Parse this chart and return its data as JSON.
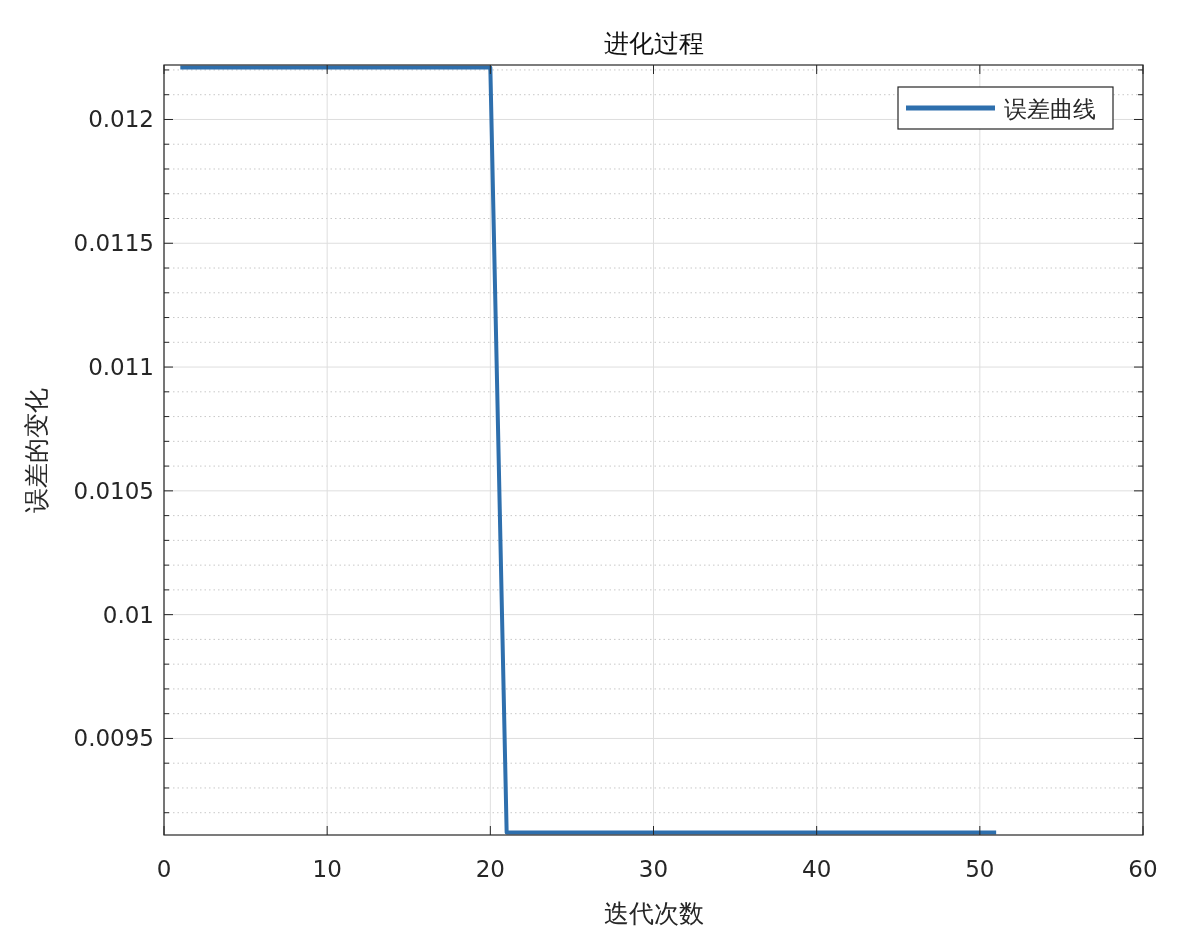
{
  "chart_data": {
    "type": "line",
    "title": "进化过程",
    "xlabel": "迭代次数",
    "ylabel": "误差的变化",
    "x": [
      1,
      20,
      21,
      51
    ],
    "series": [
      {
        "name": "误差曲线",
        "color": "#2e6fad",
        "values": [
          0.01221,
          0.01221,
          0.00912,
          0.00912
        ]
      }
    ],
    "xlim": [
      0,
      60
    ],
    "xticks": [
      0,
      10,
      20,
      30,
      40,
      50,
      60
    ],
    "ylim": [
      0.00911,
      0.01222
    ],
    "yticks": [
      {
        "value": 0.0092,
        "label": null
      },
      {
        "value": 0.0093,
        "label": null
      },
      {
        "value": 0.0094,
        "label": null
      },
      {
        "value": 0.0095,
        "label": "0.0095"
      },
      {
        "value": 0.0096,
        "label": null
      },
      {
        "value": 0.0097,
        "label": null
      },
      {
        "value": 0.0098,
        "label": null
      },
      {
        "value": 0.0099,
        "label": null
      },
      {
        "value": 0.01,
        "label": "0.01"
      },
      {
        "value": 0.0101,
        "label": null
      },
      {
        "value": 0.0102,
        "label": null
      },
      {
        "value": 0.0103,
        "label": null
      },
      {
        "value": 0.0104,
        "label": null
      },
      {
        "value": 0.0105,
        "label": "0.0105"
      },
      {
        "value": 0.0106,
        "label": null
      },
      {
        "value": 0.0107,
        "label": null
      },
      {
        "value": 0.0108,
        "label": null
      },
      {
        "value": 0.0109,
        "label": null
      },
      {
        "value": 0.011,
        "label": "0.011"
      },
      {
        "value": 0.0111,
        "label": null
      },
      {
        "value": 0.0112,
        "label": null
      },
      {
        "value": 0.0113,
        "label": null
      },
      {
        "value": 0.0114,
        "label": null
      },
      {
        "value": 0.0115,
        "label": "0.0115"
      },
      {
        "value": 0.0116,
        "label": null
      },
      {
        "value": 0.0117,
        "label": null
      },
      {
        "value": 0.0118,
        "label": null
      },
      {
        "value": 0.0119,
        "label": null
      },
      {
        "value": 0.012,
        "label": "0.012"
      },
      {
        "value": 0.0121,
        "label": null
      },
      {
        "value": 0.0122,
        "label": null
      }
    ],
    "grid": true,
    "legend": "top right",
    "marker": "none",
    "line_style": "solid"
  }
}
